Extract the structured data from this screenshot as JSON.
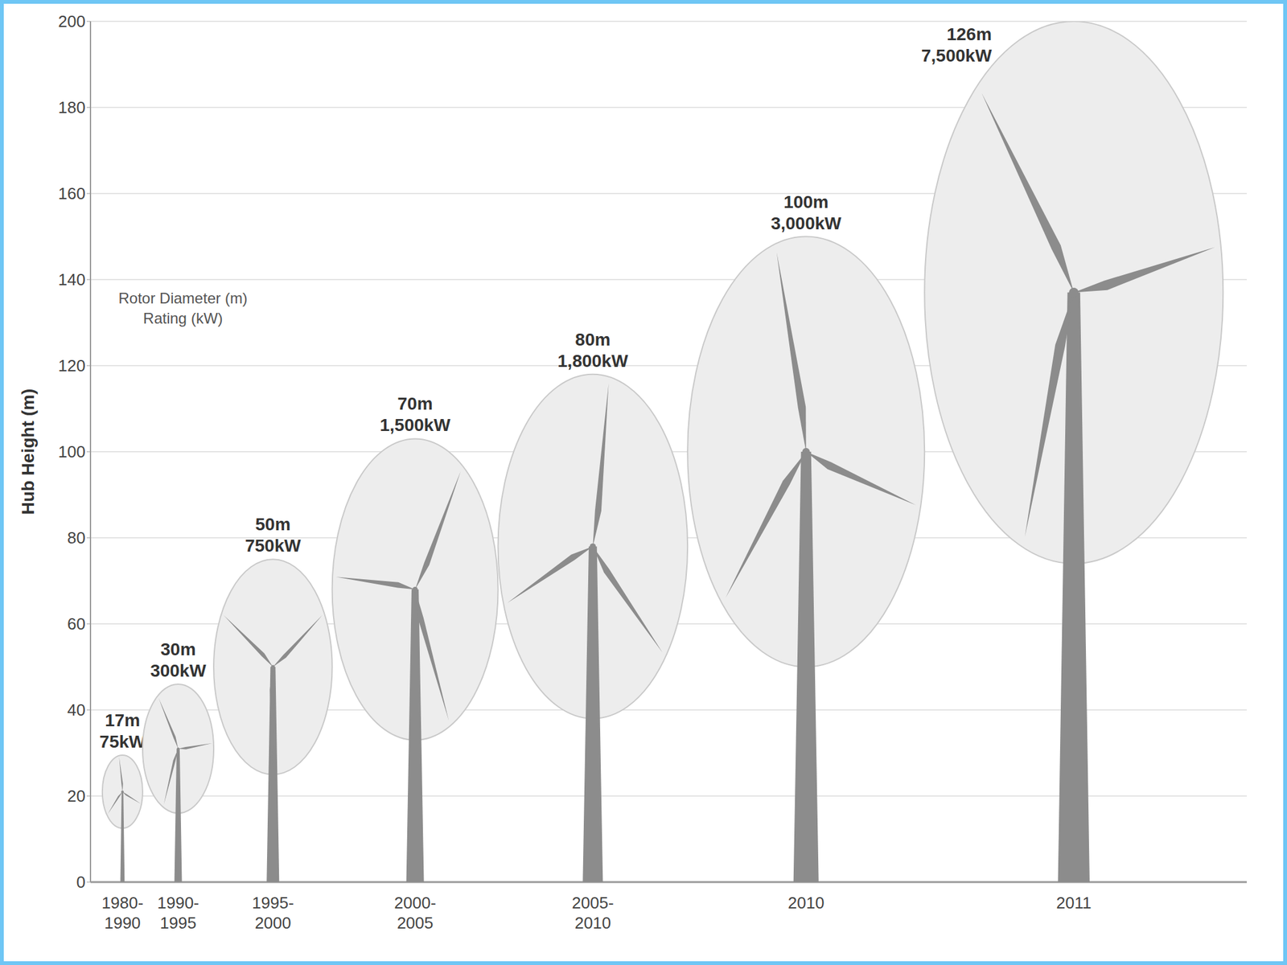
{
  "chart_data": {
    "type": "bubble",
    "y_label": "Hub Height (m)",
    "annotations": [
      "Rotor Diameter (m)",
      "Rating (kW)"
    ],
    "categories": [
      "1980-1990",
      "1990-1995",
      "1995-2000",
      "2000-2005",
      "2005-2010",
      "2010",
      "2011"
    ],
    "values": [
      21,
      31,
      50,
      68,
      78,
      100,
      137
    ],
    "rotor_diameter": [
      17,
      30,
      50,
      70,
      80,
      100,
      126
    ],
    "rotor_diameter_labels": [
      "17m",
      "30m",
      "50m",
      "70m",
      "80m",
      "100m",
      "126m"
    ],
    "rating_labels": [
      "75kW",
      "300kW",
      "750kW",
      "1,500kW",
      "1,800kW",
      "3,000kW",
      "7,500kW"
    ],
    "ylim": [
      0,
      200
    ],
    "yticks": [
      0,
      20,
      40,
      60,
      80,
      100,
      120,
      140,
      160,
      180,
      200
    ],
    "grid": true,
    "color": "#8c8c8c"
  }
}
